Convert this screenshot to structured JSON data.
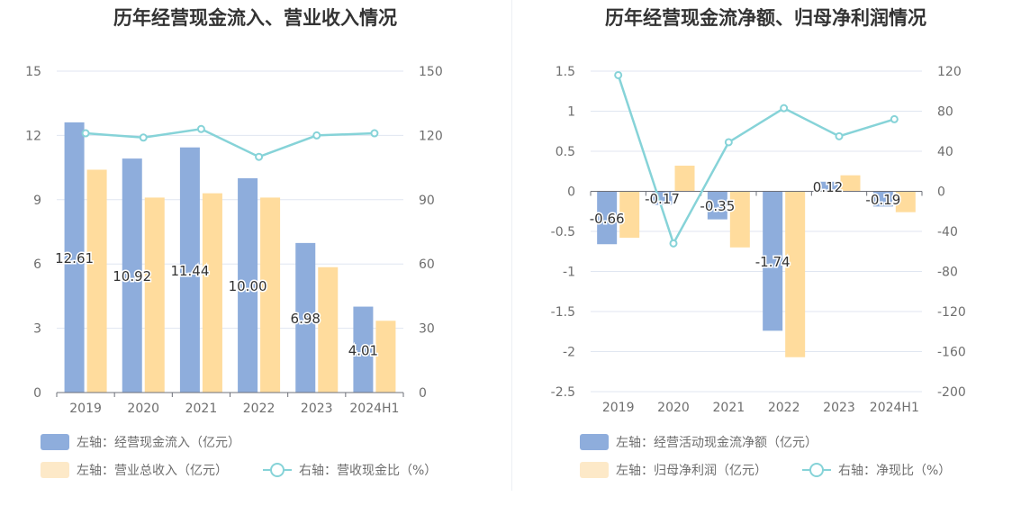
{
  "colors": {
    "bar_primary": "#8eaddc",
    "bar_secondary": "#ffdc9d",
    "legend_secondary": "#fde9c8",
    "line": "#86d3d8",
    "grid": "#e0e6f1",
    "axis": "#6e7079"
  },
  "chart_data": [
    {
      "type": "bar",
      "title": "历年经营现金流入、营业收入情况",
      "categories": [
        "2019",
        "2020",
        "2021",
        "2022",
        "2023",
        "2024H1"
      ],
      "y_left": {
        "min": 0,
        "max": 15,
        "ticks": [
          "0",
          "3",
          "6",
          "9",
          "12",
          "15"
        ]
      },
      "y_right": {
        "min": 0,
        "max": 150,
        "ticks": [
          "0",
          "30",
          "60",
          "90",
          "120",
          "150"
        ]
      },
      "series": [
        {
          "name": "左轴：经营现金流入（亿元）",
          "type": "bar",
          "axis": "left",
          "values": [
            12.61,
            10.92,
            11.44,
            10.0,
            6.98,
            4.01
          ],
          "labels": [
            "12.61",
            "10.92",
            "11.44",
            "10.00",
            "6.98",
            "4.01"
          ]
        },
        {
          "name": "左轴：营业总收入（亿元）",
          "type": "bar",
          "axis": "left",
          "values": [
            10.4,
            9.1,
            9.3,
            9.1,
            5.85,
            3.35
          ]
        },
        {
          "name": "右轴：营收现金比（%）",
          "type": "line",
          "axis": "right",
          "values": [
            121,
            119,
            123,
            110,
            120,
            121
          ]
        }
      ],
      "grid": true,
      "legend_position": "bottom-left"
    },
    {
      "type": "bar",
      "title": "历年经营现金流净额、归母净利润情况",
      "categories": [
        "2019",
        "2020",
        "2021",
        "2022",
        "2023",
        "2024H1"
      ],
      "y_left": {
        "min": -2.5,
        "max": 1.5,
        "ticks": [
          "-2.5",
          "-2",
          "-1.5",
          "-1",
          "-0.5",
          "0",
          "0.5",
          "1",
          "1.5"
        ]
      },
      "y_right": {
        "min": -200,
        "max": 120,
        "ticks": [
          "-200",
          "-160",
          "-120",
          "-80",
          "-40",
          "0",
          "40",
          "80",
          "120"
        ]
      },
      "series": [
        {
          "name": "左轴：经营活动现金流净额（亿元）",
          "type": "bar",
          "axis": "left",
          "values": [
            -0.66,
            -0.17,
            -0.35,
            -1.74,
            0.12,
            -0.19
          ],
          "labels": [
            "-0.66",
            "-0.17",
            "-0.35",
            "-1.74",
            "0.12",
            "-0.19"
          ]
        },
        {
          "name": "左轴：归母净利润（亿元）",
          "type": "bar",
          "axis": "left",
          "values": [
            -0.58,
            0.32,
            -0.7,
            -2.07,
            0.2,
            -0.26
          ]
        },
        {
          "name": "右轴：净现比（%）",
          "type": "line",
          "axis": "right",
          "values": [
            116,
            -52,
            49,
            83,
            55,
            72
          ]
        }
      ],
      "grid": true,
      "legend_position": "bottom-left"
    }
  ]
}
